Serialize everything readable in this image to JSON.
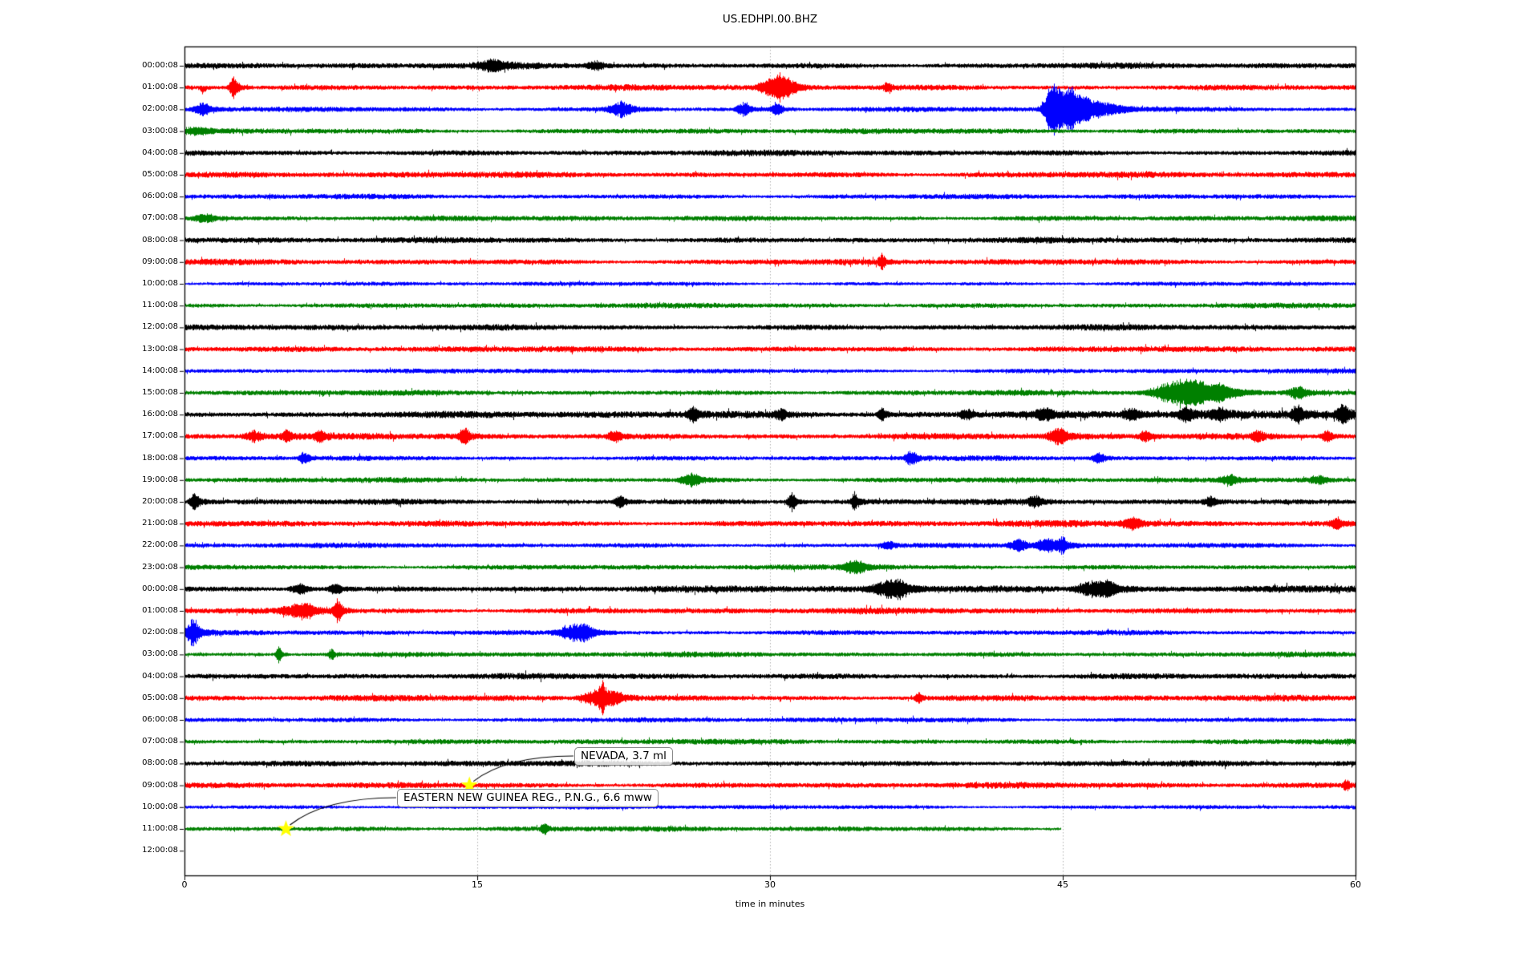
{
  "title": "US.EDHPI.00.BHZ",
  "colors": {
    "black": "#000000",
    "red": "#ff0000",
    "blue": "#0000ff",
    "green": "#008000",
    "grid": "#b0b0b0",
    "star": "#ffff00",
    "annotation_border": "#8a8a8a",
    "frame": "#000000"
  },
  "chart_data": {
    "type": "line",
    "subtype": "helicorder-seismogram",
    "title": "US.EDHPI.00.BHZ",
    "xlabel": "time in minutes",
    "xlim": [
      0,
      60
    ],
    "x_ticks": [
      0,
      15,
      30,
      45,
      60
    ],
    "grid_minutes": [
      15,
      30,
      45
    ],
    "grid_style": "dotted-vertical",
    "minutes_per_row": 60,
    "events_format": "[minute, amplitude_px, sigma_minutes, side(-1 down,0 both,1 up)]",
    "rows": [
      {
        "label": "00:00:08",
        "color": "black",
        "amp": 2.7,
        "events": [
          [
            15.7,
            4,
            0.5
          ],
          [
            21,
            3,
            0.3
          ]
        ]
      },
      {
        "label": "01:00:08",
        "color": "red",
        "amp": 2.7,
        "events": [
          [
            0.9,
            5,
            0.1,
            -1
          ],
          [
            2.5,
            9,
            0.15
          ],
          [
            29.8,
            5,
            0.3
          ],
          [
            30.4,
            9,
            0.25
          ],
          [
            30.9,
            5,
            0.3
          ],
          [
            36,
            4,
            0.12
          ]
        ]
      },
      {
        "label": "02:00:08",
        "color": "blue",
        "amp": 2.3,
        "events": [
          [
            0.9,
            5,
            0.3
          ],
          [
            22.3,
            6,
            0.4
          ],
          [
            28.6,
            5,
            0.25
          ],
          [
            30.3,
            5,
            0.2
          ],
          [
            44.4,
            18,
            0.25
          ],
          [
            44.8,
            10,
            0.4
          ],
          [
            45.35,
            14,
            0.15
          ],
          [
            45.8,
            7,
            0.5
          ],
          [
            46.8,
            4,
            0.9
          ]
        ]
      },
      {
        "label": "03:00:08",
        "color": "green",
        "amp": 2.5,
        "events": [
          [
            0.5,
            3,
            0.5
          ]
        ]
      },
      {
        "label": "04:00:08",
        "color": "black",
        "amp": 2.7,
        "events": []
      },
      {
        "label": "05:00:08",
        "color": "red",
        "amp": 2.8,
        "events": []
      },
      {
        "label": "06:00:08",
        "color": "blue",
        "amp": 2.3,
        "events": []
      },
      {
        "label": "07:00:08",
        "color": "green",
        "amp": 2.5,
        "events": [
          [
            1,
            3,
            0.4
          ]
        ]
      },
      {
        "label": "08:00:08",
        "color": "black",
        "amp": 2.7,
        "events": []
      },
      {
        "label": "09:00:08",
        "color": "red",
        "amp": 2.7,
        "events": [
          [
            35.7,
            6,
            0.12
          ]
        ]
      },
      {
        "label": "10:00:08",
        "color": "blue",
        "amp": 1.9,
        "events": []
      },
      {
        "label": "11:00:08",
        "color": "green",
        "amp": 2.4,
        "events": []
      },
      {
        "label": "12:00:08",
        "color": "black",
        "amp": 2.7,
        "events": []
      },
      {
        "label": "13:00:08",
        "color": "red",
        "amp": 2.7,
        "events": []
      },
      {
        "label": "14:00:08",
        "color": "blue",
        "amp": 2.2,
        "events": []
      },
      {
        "label": "15:00:08",
        "color": "green",
        "amp": 2.5,
        "events": [
          [
            50.7,
            10,
            0.7
          ],
          [
            51.8,
            7,
            0.5
          ],
          [
            53,
            5,
            0.4
          ],
          [
            57,
            5,
            0.3
          ]
        ]
      },
      {
        "label": "16:00:08",
        "color": "black",
        "amp": 3.0,
        "ramp": 0.35,
        "events": [
          [
            26,
            5,
            0.2
          ],
          [
            30.5,
            4,
            0.2
          ],
          [
            35.7,
            5,
            0.15
          ],
          [
            40,
            4,
            0.2
          ],
          [
            44,
            4,
            0.3
          ],
          [
            48.5,
            4,
            0.3
          ],
          [
            51.3,
            6,
            0.25
          ],
          [
            53,
            4,
            0.3
          ],
          [
            57,
            6,
            0.2
          ],
          [
            59.3,
            7,
            0.2
          ]
        ]
      },
      {
        "label": "17:00:08",
        "color": "red",
        "amp": 2.9,
        "events": [
          [
            3.5,
            4,
            0.3
          ],
          [
            5.2,
            5,
            0.15
          ],
          [
            6.9,
            5,
            0.15
          ],
          [
            14.3,
            6,
            0.2
          ],
          [
            22,
            4,
            0.2
          ],
          [
            44.7,
            7,
            0.3
          ],
          [
            49.2,
            4,
            0.2
          ],
          [
            55,
            4,
            0.2
          ],
          [
            58.5,
            4,
            0.2
          ]
        ]
      },
      {
        "label": "18:00:08",
        "color": "blue",
        "amp": 2.3,
        "events": [
          [
            6.1,
            5,
            0.15
          ],
          [
            37.2,
            6,
            0.2
          ],
          [
            46.8,
            4,
            0.2
          ]
        ]
      },
      {
        "label": "19:00:08",
        "color": "green",
        "amp": 2.4,
        "events": [
          [
            25.9,
            6,
            0.3
          ],
          [
            53.5,
            4,
            0.3
          ],
          [
            58,
            3,
            0.3
          ]
        ]
      },
      {
        "label": "20:00:08",
        "color": "black",
        "amp": 2.7,
        "events": [
          [
            0.5,
            7,
            0.15
          ],
          [
            22.3,
            5,
            0.2
          ],
          [
            31.1,
            7,
            0.15
          ],
          [
            34.3,
            7,
            0.12
          ],
          [
            43.5,
            4,
            0.2
          ],
          [
            52.5,
            4,
            0.2
          ]
        ]
      },
      {
        "label": "21:00:08",
        "color": "red",
        "amp": 2.7,
        "ramp": 0.15,
        "events": [
          [
            48.5,
            4,
            0.3
          ],
          [
            59,
            4,
            0.2
          ]
        ]
      },
      {
        "label": "22:00:08",
        "color": "blue",
        "amp": 2.3,
        "events": [
          [
            36,
            4,
            0.2
          ],
          [
            42.7,
            5,
            0.3
          ],
          [
            44.1,
            6,
            0.3
          ],
          [
            44.9,
            6,
            0.2
          ]
        ]
      },
      {
        "label": "23:00:08",
        "color": "green",
        "amp": 2.4,
        "events": [
          [
            34.3,
            5,
            0.4
          ]
        ]
      },
      {
        "label": "00:00:08",
        "color": "black",
        "amp": 2.7,
        "ramp": 0.4,
        "events": [
          [
            5.8,
            4,
            0.3
          ],
          [
            7.7,
            5,
            0.2
          ],
          [
            35.9,
            6,
            0.5
          ],
          [
            36.6,
            5,
            0.3
          ],
          [
            46.4,
            6,
            0.5
          ],
          [
            47.3,
            5,
            0.3
          ]
        ]
      },
      {
        "label": "01:00:08",
        "color": "red",
        "amp": 2.8,
        "events": [
          [
            5.5,
            4,
            0.4
          ],
          [
            6.2,
            5,
            0.3
          ],
          [
            7.8,
            9,
            0.15
          ]
        ]
      },
      {
        "label": "02:00:08",
        "color": "blue",
        "amp": 2.3,
        "events": [
          [
            0.4,
            12,
            0.2
          ],
          [
            19.8,
            6,
            0.5
          ],
          [
            20.5,
            5,
            0.3
          ]
        ]
      },
      {
        "label": "03:00:08",
        "color": "green",
        "amp": 2.4,
        "events": [
          [
            4.8,
            6,
            0.1
          ],
          [
            7.5,
            5,
            0.1
          ]
        ]
      },
      {
        "label": "04:00:08",
        "color": "black",
        "amp": 2.7,
        "events": []
      },
      {
        "label": "05:00:08",
        "color": "red",
        "amp": 2.8,
        "events": [
          [
            20.9,
            6,
            0.4
          ],
          [
            21.35,
            14,
            0.1
          ],
          [
            21.9,
            5,
            0.3
          ],
          [
            37.6,
            4,
            0.12
          ]
        ]
      },
      {
        "label": "06:00:08",
        "color": "blue",
        "amp": 2.3,
        "events": []
      },
      {
        "label": "07:00:08",
        "color": "green",
        "amp": 2.5,
        "events": []
      },
      {
        "label": "08:00:08",
        "color": "black",
        "amp": 2.7,
        "events": []
      },
      {
        "label": "09:00:08",
        "color": "red",
        "amp": 2.7,
        "events": [
          [
            59.5,
            4,
            0.12
          ]
        ]
      },
      {
        "label": "10:00:08",
        "color": "blue",
        "amp": 2.0,
        "events": []
      },
      {
        "label": "11:00:08",
        "color": "green",
        "amp": 2.4,
        "end_min": 44.9,
        "events": [
          [
            18.4,
            4,
            0.12
          ]
        ]
      },
      {
        "label": "12:00:08",
        "color": "black",
        "amp": 0,
        "end_min": 0,
        "events": []
      }
    ],
    "annotations": [
      {
        "label": "NEVADA, 3.7 ml",
        "row": 33,
        "minute": 14.6
      },
      {
        "label": "EASTERN NEW GUINEA REG., P.N.G., 6.6 mww",
        "row": 35,
        "minute": 5.2
      }
    ]
  }
}
